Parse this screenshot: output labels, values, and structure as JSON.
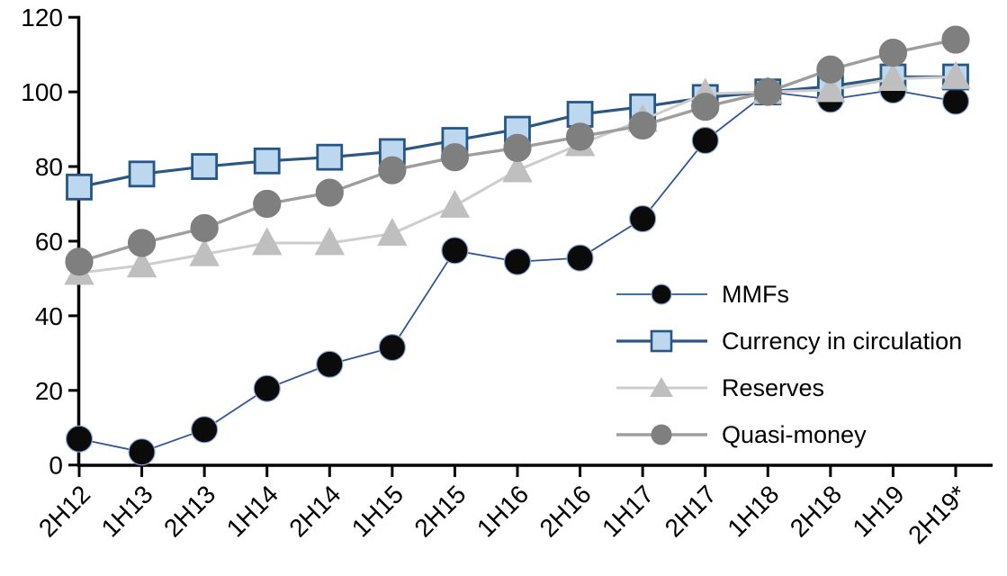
{
  "chart_data": {
    "type": "line",
    "title": "",
    "xlabel": "",
    "ylabel": "",
    "x": [
      "2H12",
      "1H13",
      "2H13",
      "1H14",
      "2H14",
      "1H15",
      "2H15",
      "1H16",
      "2H16",
      "1H17",
      "2H17",
      "1H18",
      "2H18",
      "1H19",
      "2H19*"
    ],
    "yticks": [
      0,
      20,
      40,
      60,
      80,
      100,
      120
    ],
    "ylim": [
      0,
      120
    ],
    "grid": false,
    "legend_position": "inside-right",
    "axis_color": "#000000",
    "series": [
      {
        "name": "MMFs",
        "marker": "circle",
        "values": [
          7,
          3.5,
          9.5,
          20.5,
          27,
          31.5,
          57.5,
          54.5,
          55.5,
          66,
          87,
          100,
          98,
          100.5,
          97.5
        ],
        "line_color": "#2F5597",
        "marker_fill": "#0B0B0B",
        "marker_stroke": "#8FAADC",
        "line_width": 1.8,
        "marker_size": 29
      },
      {
        "name": "Currency in circulation",
        "marker": "square",
        "values": [
          74.5,
          78,
          80,
          81.5,
          82.5,
          84,
          87,
          90,
          94,
          96,
          98.5,
          100,
          101.5,
          104,
          104
        ],
        "line_color": "#2A5783",
        "marker_fill": "#BDD7EE",
        "marker_stroke": "#255685",
        "line_width": 3.2,
        "marker_size": 27
      },
      {
        "name": "Reserves",
        "marker": "triangle",
        "values": [
          51.5,
          53.5,
          56.5,
          59.5,
          59.5,
          62,
          69.5,
          79,
          86,
          92.5,
          99.5,
          100,
          100.5,
          103.5,
          104
        ],
        "line_color": "#CDCDCD",
        "marker_fill": "#BFBFBF",
        "marker_stroke": "#BFBFBF",
        "line_width": 3,
        "marker_size": 31
      },
      {
        "name": "Quasi-money",
        "marker": "circle",
        "values": [
          54.5,
          59.5,
          63.5,
          70,
          73,
          79,
          82.5,
          85,
          88,
          91,
          96,
          100,
          106,
          110.5,
          114
        ],
        "line_color": "#9E9E9E",
        "marker_fill": "#7F7F7F",
        "marker_stroke": "#7F7F7F",
        "line_width": 3.4,
        "marker_size": 30
      }
    ]
  }
}
